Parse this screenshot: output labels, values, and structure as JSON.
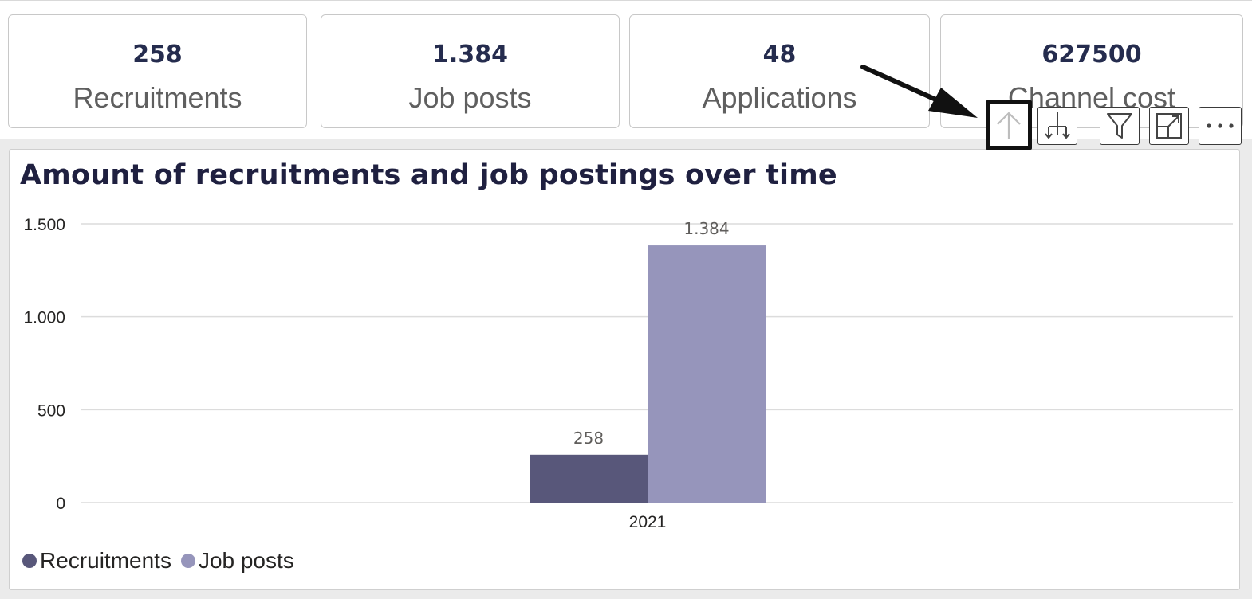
{
  "kpis": [
    {
      "value": "258",
      "label": "Recruitments"
    },
    {
      "value": "1.384",
      "label": "Job posts"
    },
    {
      "value": "48",
      "label": "Applications"
    },
    {
      "value": "627500",
      "label": "Channel cost"
    }
  ],
  "toolbar": {
    "icons": [
      "drill-up-icon",
      "expand-down-icon",
      "filter-icon",
      "focus-mode-icon",
      "more-options-icon"
    ]
  },
  "colors": {
    "recruitments": "#58577a",
    "job_posts": "#9695bb",
    "title": "#1f2040",
    "kpi_value": "#252c4e"
  },
  "visual": {
    "title": "Amount of recruitments and job postings over time"
  },
  "chart_data": {
    "type": "bar",
    "title": "Amount of recruitments and job postings over time",
    "categories": [
      "2021"
    ],
    "series": [
      {
        "name": "Recruitments",
        "values": [
          258
        ],
        "labels": [
          "258"
        ]
      },
      {
        "name": "Job posts",
        "values": [
          1384
        ],
        "labels": [
          "1.384"
        ]
      }
    ],
    "yticks": [
      {
        "value": 0,
        "label": "0"
      },
      {
        "value": 500,
        "label": "500"
      },
      {
        "value": 1000,
        "label": "1.000"
      },
      {
        "value": 1500,
        "label": "1.500"
      }
    ],
    "ylim": [
      0,
      1500
    ],
    "grid": true,
    "legend": "bottom-left"
  }
}
